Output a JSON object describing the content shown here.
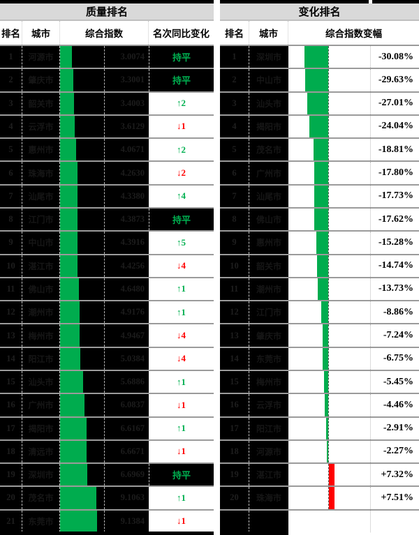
{
  "titles": {
    "left": "质量排名",
    "right": "变化排名"
  },
  "left_table": {
    "headers": {
      "rank": "排名",
      "city": "城市",
      "index": "综合指数",
      "change": "名次同比变化"
    },
    "flat_label": "持平",
    "rows": [
      {
        "rank": "1",
        "city": "河源市",
        "index": "3.0074",
        "change_type": "flat",
        "change_label": "持平"
      },
      {
        "rank": "2",
        "city": "肇庆市",
        "index": "3.3001",
        "change_type": "flat",
        "change_label": "持平"
      },
      {
        "rank": "3",
        "city": "韶关市",
        "index": "3.4003",
        "change_type": "up",
        "change_label": "↑2"
      },
      {
        "rank": "4",
        "city": "云浮市",
        "index": "3.6129",
        "change_type": "down",
        "change_label": "↓1"
      },
      {
        "rank": "5",
        "city": "惠州市",
        "index": "4.0671",
        "change_type": "up",
        "change_label": "↑2"
      },
      {
        "rank": "6",
        "city": "珠海市",
        "index": "4.2630",
        "change_type": "down",
        "change_label": "↓2"
      },
      {
        "rank": "7",
        "city": "汕尾市",
        "index": "4.3380",
        "change_type": "up",
        "change_label": "↑4"
      },
      {
        "rank": "8",
        "city": "江门市",
        "index": "4.3873",
        "change_type": "flat",
        "change_label": "持平"
      },
      {
        "rank": "9",
        "city": "中山市",
        "index": "4.3916",
        "change_type": "up",
        "change_label": "↑5"
      },
      {
        "rank": "10",
        "city": "湛江市",
        "index": "4.4256",
        "change_type": "down",
        "change_label": "↓4"
      },
      {
        "rank": "11",
        "city": "佛山市",
        "index": "4.6480",
        "change_type": "up",
        "change_label": "↑1"
      },
      {
        "rank": "12",
        "city": "潮州市",
        "index": "4.9176",
        "change_type": "up",
        "change_label": "↑1"
      },
      {
        "rank": "13",
        "city": "梅州市",
        "index": "4.9467",
        "change_type": "down",
        "change_label": "↓4"
      },
      {
        "rank": "14",
        "city": "阳江市",
        "index": "5.0384",
        "change_type": "down",
        "change_label": "↓4"
      },
      {
        "rank": "15",
        "city": "汕头市",
        "index": "5.6886",
        "change_type": "up",
        "change_label": "↑1"
      },
      {
        "rank": "16",
        "city": "广州市",
        "index": "6.0837",
        "change_type": "down",
        "change_label": "↓1"
      },
      {
        "rank": "17",
        "city": "揭阳市",
        "index": "6.6167",
        "change_type": "up",
        "change_label": "↑1"
      },
      {
        "rank": "18",
        "city": "清远市",
        "index": "6.6671",
        "change_type": "down",
        "change_label": "↓1"
      },
      {
        "rank": "19",
        "city": "深圳市",
        "index": "6.6969",
        "change_type": "flat",
        "change_label": "持平"
      },
      {
        "rank": "20",
        "city": "茂名市",
        "index": "9.1063",
        "change_type": "up",
        "change_label": "↑1"
      },
      {
        "rank": "21",
        "city": "东莞市",
        "index": "9.1384",
        "change_type": "down",
        "change_label": "↓1"
      }
    ]
  },
  "right_table": {
    "headers": {
      "rank": "排名",
      "city": "城市",
      "pct": "综合指数变幅"
    },
    "rows": [
      {
        "rank": "1",
        "city": "深圳市",
        "pct_label": "-30.08%",
        "pct_value": -30.08
      },
      {
        "rank": "2",
        "city": "中山市",
        "pct_label": "-29.63%",
        "pct_value": -29.63
      },
      {
        "rank": "3",
        "city": "汕头市",
        "pct_label": "-27.01%",
        "pct_value": -27.01
      },
      {
        "rank": "4",
        "city": "揭阳市",
        "pct_label": "-24.04%",
        "pct_value": -24.04
      },
      {
        "rank": "5",
        "city": "茂名市",
        "pct_label": "-18.81%",
        "pct_value": -18.81
      },
      {
        "rank": "6",
        "city": "广州市",
        "pct_label": "-17.80%",
        "pct_value": -17.8
      },
      {
        "rank": "7",
        "city": "汕尾市",
        "pct_label": "-17.73%",
        "pct_value": -17.73
      },
      {
        "rank": "8",
        "city": "佛山市",
        "pct_label": "-17.62%",
        "pct_value": -17.62
      },
      {
        "rank": "9",
        "city": "惠州市",
        "pct_label": "-15.28%",
        "pct_value": -15.28
      },
      {
        "rank": "10",
        "city": "韶关市",
        "pct_label": "-14.74%",
        "pct_value": -14.74
      },
      {
        "rank": "11",
        "city": "潮州市",
        "pct_label": "-13.73%",
        "pct_value": -13.73
      },
      {
        "rank": "12",
        "city": "江门市",
        "pct_label": "-8.86%",
        "pct_value": -8.86
      },
      {
        "rank": "13",
        "city": "肇庆市",
        "pct_label": "-7.24%",
        "pct_value": -7.24
      },
      {
        "rank": "14",
        "city": "东莞市",
        "pct_label": "-6.75%",
        "pct_value": -6.75
      },
      {
        "rank": "15",
        "city": "梅州市",
        "pct_label": "-5.45%",
        "pct_value": -5.45
      },
      {
        "rank": "16",
        "city": "云浮市",
        "pct_label": "-4.46%",
        "pct_value": -4.46
      },
      {
        "rank": "17",
        "city": "阳江市",
        "pct_label": "-2.91%",
        "pct_value": -2.91
      },
      {
        "rank": "18",
        "city": "河源市",
        "pct_label": "-2.27%",
        "pct_value": -2.27
      },
      {
        "rank": "19",
        "city": "湛江市",
        "pct_label": "+7.32%",
        "pct_value": 7.32
      },
      {
        "rank": "20",
        "city": "珠海市",
        "pct_label": "+7.51%",
        "pct_value": 7.51
      },
      {
        "rank": "",
        "city": "",
        "pct_label": "",
        "pct_value": null
      }
    ]
  },
  "colors": {
    "bar_green": "#00AC4E",
    "bar_red": "#FF0000",
    "text_green": "#00B050",
    "text_red": "#FF0000",
    "section_header_bg": "#D9D9D9",
    "cell_bg": "#000000",
    "row_separator": "#9B9B9B"
  },
  "chart_data": [
    {
      "type": "table",
      "title": "质量排名",
      "columns": [
        "排名",
        "城市",
        "综合指数",
        "名次同比变化"
      ],
      "rows": [
        [
          1,
          "河源市",
          3.0074,
          "持平"
        ],
        [
          2,
          "肇庆市",
          3.3001,
          "持平"
        ],
        [
          3,
          "韶关市",
          3.4003,
          "↑2"
        ],
        [
          4,
          "云浮市",
          3.6129,
          "↓1"
        ],
        [
          5,
          "惠州市",
          4.0671,
          "↑2"
        ],
        [
          6,
          "珠海市",
          4.263,
          "↓2"
        ],
        [
          7,
          "汕尾市",
          4.338,
          "↑4"
        ],
        [
          8,
          "江门市",
          4.3873,
          "持平"
        ],
        [
          9,
          "中山市",
          4.3916,
          "↑5"
        ],
        [
          10,
          "湛江市",
          4.4256,
          "↓4"
        ],
        [
          11,
          "佛山市",
          4.648,
          "↑1"
        ],
        [
          12,
          "潮州市",
          4.9176,
          "↑1"
        ],
        [
          13,
          "梅州市",
          4.9467,
          "↓4"
        ],
        [
          14,
          "阳江市",
          5.0384,
          "↓4"
        ],
        [
          15,
          "汕头市",
          5.6886,
          "↑1"
        ],
        [
          16,
          "广州市",
          6.0837,
          "↓1"
        ],
        [
          17,
          "揭阳市",
          6.6167,
          "↑1"
        ],
        [
          18,
          "清远市",
          6.6671,
          "↓1"
        ],
        [
          19,
          "深圳市",
          6.6969,
          "持平"
        ],
        [
          20,
          "茂名市",
          9.1063,
          "↑1"
        ],
        [
          21,
          "东莞市",
          9.1384,
          "↓1"
        ]
      ],
      "note": "综合指数 column shows green data bars proportional to value, drawn on black cells"
    },
    {
      "type": "bar",
      "title": "变化排名",
      "categories": [
        "深圳市",
        "中山市",
        "汕头市",
        "揭阳市",
        "茂名市",
        "广州市",
        "汕尾市",
        "佛山市",
        "惠州市",
        "韶关市",
        "潮州市",
        "江门市",
        "肇庆市",
        "东莞市",
        "梅州市",
        "云浮市",
        "阳江市",
        "河源市",
        "湛江市",
        "珠海市"
      ],
      "values": [
        -30.08,
        -29.63,
        -27.01,
        -24.04,
        -18.81,
        -17.8,
        -17.73,
        -17.62,
        -15.28,
        -14.74,
        -13.73,
        -8.86,
        -7.24,
        -6.75,
        -5.45,
        -4.46,
        -2.91,
        -2.27,
        7.32,
        7.51
      ],
      "xlabel": "综合指数变幅",
      "ylabel": "",
      "xlim": [
        -30.08,
        7.51
      ],
      "orientation": "horizontal",
      "note": "negative values = green bars extending left of dashed baseline; positive = red bars extending right"
    }
  ]
}
